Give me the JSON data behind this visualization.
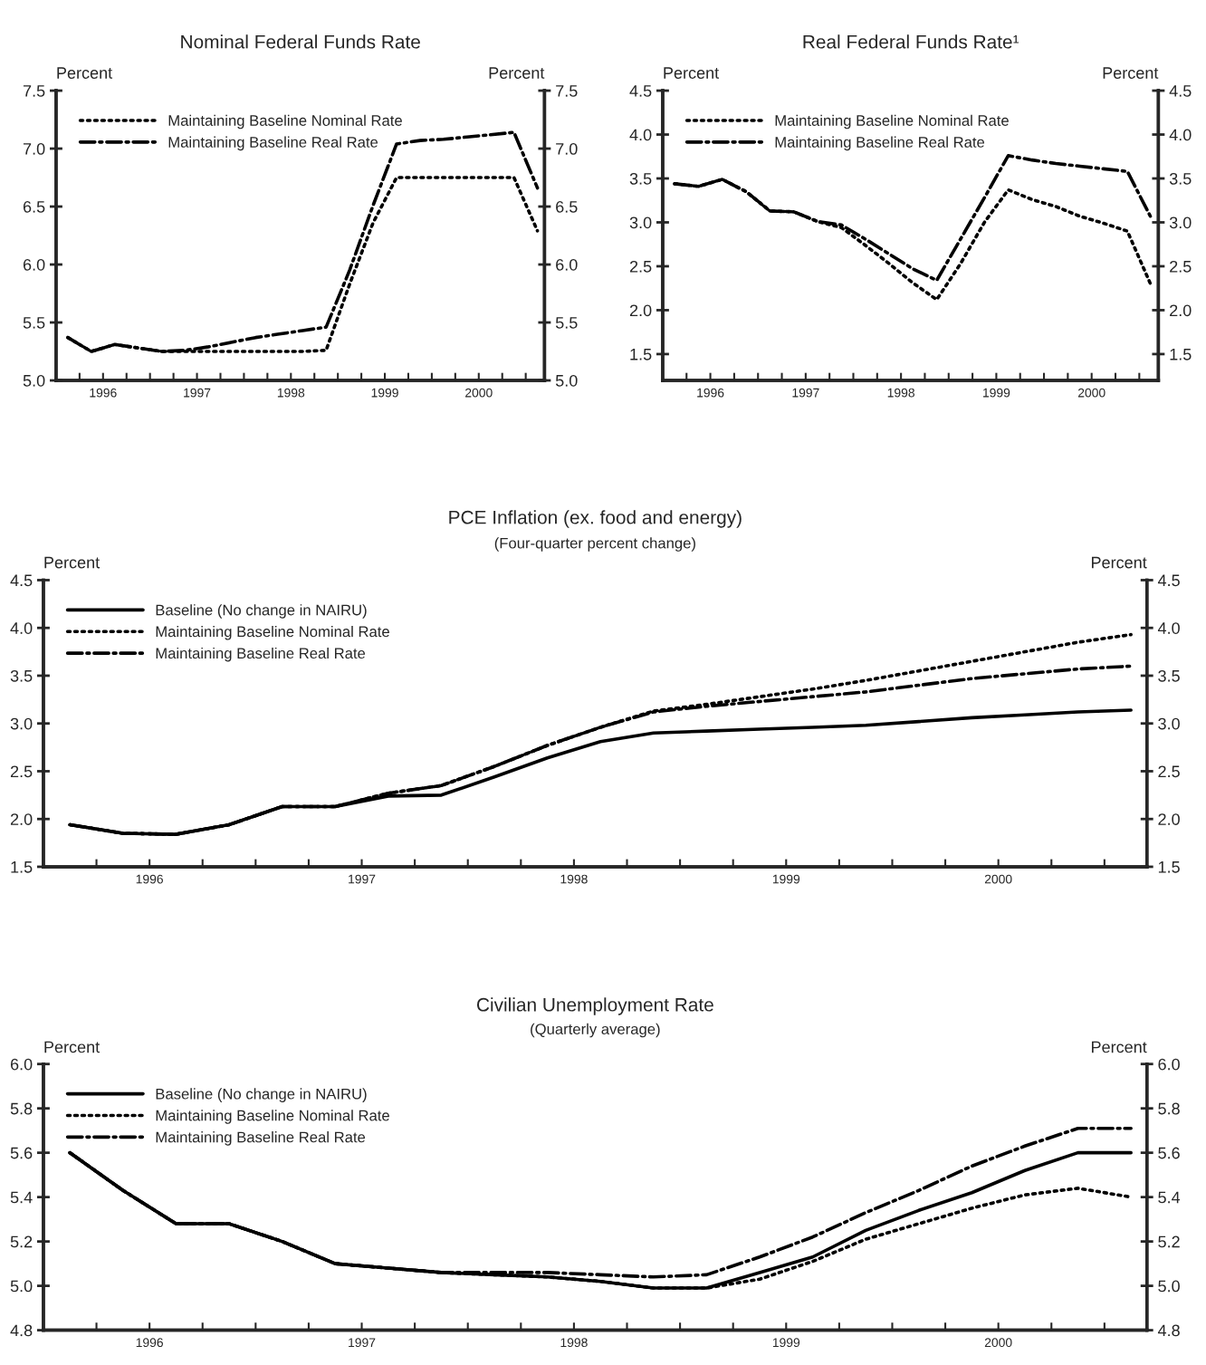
{
  "chart_data": [
    {
      "type": "line",
      "title": "Nominal Federal Funds Rate",
      "ylabel": "Percent",
      "y2label": "Percent",
      "legend": "top left",
      "x": [
        1996.125,
        1996.375,
        1996.625,
        1996.875,
        1997.125,
        1997.375,
        1997.625,
        1997.875,
        1998.125,
        1998.375,
        1998.625,
        1998.875,
        1999.125,
        1999.375,
        1999.625,
        1999.875,
        2000.125,
        2000.375,
        2000.625,
        2000.875,
        2001.125
      ],
      "xlim": [
        1996.0,
        2001.2
      ],
      "xticks": [
        {
          "value": 1996.25,
          "label": null
        },
        {
          "value": 1996.5,
          "label": "1996"
        },
        {
          "value": 1996.75,
          "label": null
        },
        {
          "value": 1997.0,
          "label": null
        },
        {
          "value": 1997.25,
          "label": null
        },
        {
          "value": 1997.5,
          "label": "1997"
        },
        {
          "value": 1997.75,
          "label": null
        },
        {
          "value": 1998.0,
          "label": null
        },
        {
          "value": 1998.25,
          "label": null
        },
        {
          "value": 1998.5,
          "label": "1998"
        },
        {
          "value": 1998.75,
          "label": null
        },
        {
          "value": 1999.0,
          "label": null
        },
        {
          "value": 1999.25,
          "label": null
        },
        {
          "value": 1999.5,
          "label": "1999"
        },
        {
          "value": 1999.75,
          "label": null
        },
        {
          "value": 2000.0,
          "label": null
        },
        {
          "value": 2000.25,
          "label": null
        },
        {
          "value": 2000.5,
          "label": "2000"
        },
        {
          "value": 2000.75,
          "label": null
        },
        {
          "value": 2001.0,
          "label": null
        }
      ],
      "ylim": [
        5.0,
        7.5
      ],
      "yticks": [
        {
          "value": 5,
          "label": "5.0"
        },
        5.5,
        {
          "value": 6,
          "label": "6.0"
        },
        6.5,
        {
          "value": 7,
          "label": "7.0"
        },
        7.5
      ],
      "y2lim": [
        5.0,
        7.5
      ],
      "y2ticks": [
        {
          "value": 5,
          "label": "5.0"
        },
        5.5,
        {
          "value": 6,
          "label": "6.0"
        },
        6.5,
        {
          "value": 7,
          "label": "7.0"
        },
        7.5
      ],
      "series": [
        {
          "name": "Maintaining Baseline Nominal Rate",
          "color": "#000000",
          "line_style": "dotted",
          "values": [
            5.37,
            5.25,
            5.31,
            5.28,
            5.25,
            5.25,
            5.25,
            5.25,
            5.25,
            5.25,
            5.25,
            5.26,
            5.83,
            6.36,
            6.75,
            6.75,
            6.75,
            6.75,
            6.75,
            6.75,
            6.29
          ]
        },
        {
          "name": "Maintaining Baseline Real Rate",
          "color": "#000000",
          "line_style": "dashdot",
          "values": [
            5.37,
            5.25,
            5.31,
            5.28,
            5.25,
            5.26,
            5.29,
            5.33,
            5.37,
            5.4,
            5.43,
            5.46,
            5.95,
            6.51,
            7.04,
            7.07,
            7.08,
            7.1,
            7.12,
            7.14,
            6.66
          ]
        }
      ]
    },
    {
      "type": "line",
      "title": "Real Federal Funds Rate¹",
      "ylabel": "Percent",
      "y2label": "Percent",
      "legend": "top left",
      "x": [
        1996.125,
        1996.375,
        1996.625,
        1996.875,
        1997.125,
        1997.375,
        1997.625,
        1997.875,
        1998.125,
        1998.375,
        1998.625,
        1998.875,
        1999.125,
        1999.375,
        1999.625,
        1999.875,
        2000.125,
        2000.375,
        2000.625,
        2000.875,
        2001.125
      ],
      "xlim": [
        1996.0,
        2001.2
      ],
      "xticks": [
        {
          "value": 1996.25,
          "label": null
        },
        {
          "value": 1996.5,
          "label": "1996"
        },
        {
          "value": 1996.75,
          "label": null
        },
        {
          "value": 1997.0,
          "label": null
        },
        {
          "value": 1997.25,
          "label": null
        },
        {
          "value": 1997.5,
          "label": "1997"
        },
        {
          "value": 1997.75,
          "label": null
        },
        {
          "value": 1998.0,
          "label": null
        },
        {
          "value": 1998.25,
          "label": null
        },
        {
          "value": 1998.5,
          "label": "1998"
        },
        {
          "value": 1998.75,
          "label": null
        },
        {
          "value": 1999.0,
          "label": null
        },
        {
          "value": 1999.25,
          "label": null
        },
        {
          "value": 1999.5,
          "label": "1999"
        },
        {
          "value": 1999.75,
          "label": null
        },
        {
          "value": 2000.0,
          "label": null
        },
        {
          "value": 2000.25,
          "label": null
        },
        {
          "value": 2000.5,
          "label": "2000"
        },
        {
          "value": 2000.75,
          "label": null
        },
        {
          "value": 2001.0,
          "label": null
        }
      ],
      "ylim": [
        1.2,
        4.5
      ],
      "yticks": [
        1.5,
        {
          "value": 2,
          "label": "2.0"
        },
        2.5,
        {
          "value": 3,
          "label": "3.0"
        },
        3.5,
        {
          "value": 4,
          "label": "4.0"
        },
        4.5
      ],
      "y2lim": [
        1.2,
        4.5
      ],
      "y2ticks": [
        1.5,
        {
          "value": 2,
          "label": "2.0"
        },
        2.5,
        {
          "value": 3,
          "label": "3.0"
        },
        3.5,
        {
          "value": 4,
          "label": "4.0"
        },
        4.5
      ],
      "series": [
        {
          "name": "Maintaining Baseline Nominal Rate",
          "color": "#000000",
          "line_style": "dotted",
          "values": [
            3.44,
            3.41,
            3.49,
            3.35,
            3.13,
            3.12,
            3.01,
            2.94,
            2.74,
            2.53,
            2.31,
            2.12,
            2.53,
            3.0,
            3.37,
            3.26,
            3.18,
            3.07,
            2.99,
            2.9,
            2.28
          ]
        },
        {
          "name": "Maintaining Baseline Real Rate",
          "color": "#000000",
          "line_style": "dashdot",
          "values": [
            3.44,
            3.41,
            3.49,
            3.35,
            3.13,
            3.12,
            3.01,
            2.97,
            2.81,
            2.64,
            2.47,
            2.34,
            2.81,
            3.28,
            3.76,
            3.71,
            3.67,
            3.64,
            3.61,
            3.58,
            3.05
          ]
        }
      ]
    },
    {
      "type": "line",
      "title": "PCE Inflation (ex. food and energy)",
      "subtitle": "(Four-quarter percent change)",
      "ylabel": "Percent",
      "y2label": "Percent",
      "legend": "top left",
      "x": [
        1996.125,
        1996.375,
        1996.625,
        1996.875,
        1997.125,
        1997.375,
        1997.625,
        1997.875,
        1998.125,
        1998.375,
        1998.625,
        1998.875,
        1999.125,
        1999.375,
        1999.625,
        1999.875,
        2000.125,
        2000.375,
        2000.625,
        2000.875,
        2001.125
      ],
      "xlim": [
        1996.0,
        2001.2
      ],
      "xticks": [
        {
          "value": 1996.25,
          "label": null
        },
        {
          "value": 1996.5,
          "label": "1996"
        },
        {
          "value": 1996.75,
          "label": null
        },
        {
          "value": 1997.0,
          "label": null
        },
        {
          "value": 1997.25,
          "label": null
        },
        {
          "value": 1997.5,
          "label": "1997"
        },
        {
          "value": 1997.75,
          "label": null
        },
        {
          "value": 1998.0,
          "label": null
        },
        {
          "value": 1998.25,
          "label": null
        },
        {
          "value": 1998.5,
          "label": "1998"
        },
        {
          "value": 1998.75,
          "label": null
        },
        {
          "value": 1999.0,
          "label": null
        },
        {
          "value": 1999.25,
          "label": null
        },
        {
          "value": 1999.5,
          "label": "1999"
        },
        {
          "value": 1999.75,
          "label": null
        },
        {
          "value": 2000.0,
          "label": null
        },
        {
          "value": 2000.25,
          "label": null
        },
        {
          "value": 2000.5,
          "label": "2000"
        },
        {
          "value": 2000.75,
          "label": null
        },
        {
          "value": 2001.0,
          "label": null
        }
      ],
      "ylim": [
        1.5,
        4.5
      ],
      "yticks": [
        1.5,
        {
          "value": 2,
          "label": "2.0"
        },
        2.5,
        {
          "value": 3,
          "label": "3.0"
        },
        3.5,
        {
          "value": 4,
          "label": "4.0"
        },
        4.5
      ],
      "y2lim": [
        1.5,
        4.5
      ],
      "y2ticks": [
        1.5,
        {
          "value": 2,
          "label": "2.0"
        },
        2.5,
        {
          "value": 3,
          "label": "3.0"
        },
        3.5,
        {
          "value": 4,
          "label": "4.0"
        },
        4.5
      ],
      "series": [
        {
          "name": "Baseline (No change in NAIRU)",
          "color": "#000000",
          "line_style": "solid",
          "values": [
            1.94,
            1.85,
            1.84,
            1.94,
            2.13,
            2.13,
            2.24,
            2.25,
            2.44,
            2.64,
            2.81,
            2.9,
            2.92,
            2.94,
            2.96,
            2.98,
            3.02,
            3.06,
            3.09,
            3.12,
            3.14
          ]
        },
        {
          "name": "Maintaining Baseline Nominal Rate",
          "color": "#000000",
          "line_style": "dotted",
          "values": [
            1.94,
            1.85,
            1.84,
            1.94,
            2.13,
            2.13,
            2.27,
            2.35,
            2.55,
            2.77,
            2.96,
            3.13,
            3.2,
            3.28,
            3.36,
            3.45,
            3.55,
            3.65,
            3.75,
            3.85,
            3.93
          ]
        },
        {
          "name": "Maintaining Baseline Real Rate",
          "color": "#000000",
          "line_style": "dashdot",
          "values": [
            1.94,
            1.85,
            1.84,
            1.94,
            2.13,
            2.13,
            2.27,
            2.35,
            2.55,
            2.77,
            2.96,
            3.12,
            3.18,
            3.23,
            3.28,
            3.33,
            3.4,
            3.47,
            3.52,
            3.57,
            3.6
          ]
        }
      ]
    },
    {
      "type": "line",
      "title": "Civilian Unemployment Rate",
      "subtitle": "(Quarterly average)",
      "ylabel": "Percent",
      "y2label": "Percent",
      "legend": "top left",
      "x": [
        1996.125,
        1996.375,
        1996.625,
        1996.875,
        1997.125,
        1997.375,
        1997.625,
        1997.875,
        1998.125,
        1998.375,
        1998.625,
        1998.875,
        1999.125,
        1999.375,
        1999.625,
        1999.875,
        2000.125,
        2000.375,
        2000.625,
        2000.875,
        2001.125
      ],
      "xlim": [
        1996.0,
        2001.2
      ],
      "xticks": [
        {
          "value": 1996.25,
          "label": null
        },
        {
          "value": 1996.5,
          "label": "1996"
        },
        {
          "value": 1996.75,
          "label": null
        },
        {
          "value": 1997.0,
          "label": null
        },
        {
          "value": 1997.25,
          "label": null
        },
        {
          "value": 1997.5,
          "label": "1997"
        },
        {
          "value": 1997.75,
          "label": null
        },
        {
          "value": 1998.0,
          "label": null
        },
        {
          "value": 1998.25,
          "label": null
        },
        {
          "value": 1998.5,
          "label": "1998"
        },
        {
          "value": 1998.75,
          "label": null
        },
        {
          "value": 1999.0,
          "label": null
        },
        {
          "value": 1999.25,
          "label": null
        },
        {
          "value": 1999.5,
          "label": "1999"
        },
        {
          "value": 1999.75,
          "label": null
        },
        {
          "value": 2000.0,
          "label": null
        },
        {
          "value": 2000.25,
          "label": null
        },
        {
          "value": 2000.5,
          "label": "2000"
        },
        {
          "value": 2000.75,
          "label": null
        },
        {
          "value": 2001.0,
          "label": null
        }
      ],
      "ylim": [
        4.8,
        6.0
      ],
      "yticks": [
        4.8,
        {
          "value": 5,
          "label": "5.0"
        },
        5.2,
        5.4,
        5.6,
        5.8,
        {
          "value": 6,
          "label": "6.0"
        }
      ],
      "y2lim": [
        4.8,
        6.0
      ],
      "y2ticks": [
        4.8,
        {
          "value": 5,
          "label": "5.0"
        },
        5.2,
        5.4,
        5.6,
        5.8,
        {
          "value": 6,
          "label": "6.0"
        }
      ],
      "series": [
        {
          "name": "Baseline (No change in NAIRU)",
          "color": "#000000",
          "line_style": "solid",
          "values": [
            5.6,
            5.43,
            5.28,
            5.28,
            5.2,
            5.1,
            5.08,
            5.06,
            5.05,
            5.04,
            5.02,
            4.99,
            4.99,
            5.06,
            5.13,
            5.25,
            5.34,
            5.42,
            5.52,
            5.6,
            5.6
          ]
        },
        {
          "name": "Maintaining Baseline Nominal Rate",
          "color": "#000000",
          "line_style": "dotted",
          "values": [
            5.6,
            5.43,
            5.28,
            5.28,
            5.2,
            5.1,
            5.08,
            5.06,
            5.05,
            5.04,
            5.02,
            4.99,
            4.99,
            5.03,
            5.11,
            5.21,
            5.28,
            5.35,
            5.41,
            5.44,
            5.4
          ]
        },
        {
          "name": "Maintaining Baseline Real Rate",
          "color": "#000000",
          "line_style": "dashdot",
          "values": [
            5.6,
            5.43,
            5.28,
            5.28,
            5.2,
            5.1,
            5.08,
            5.06,
            5.06,
            5.06,
            5.05,
            5.04,
            5.05,
            5.13,
            5.22,
            5.33,
            5.43,
            5.54,
            5.63,
            5.71,
            5.71
          ]
        }
      ]
    }
  ]
}
